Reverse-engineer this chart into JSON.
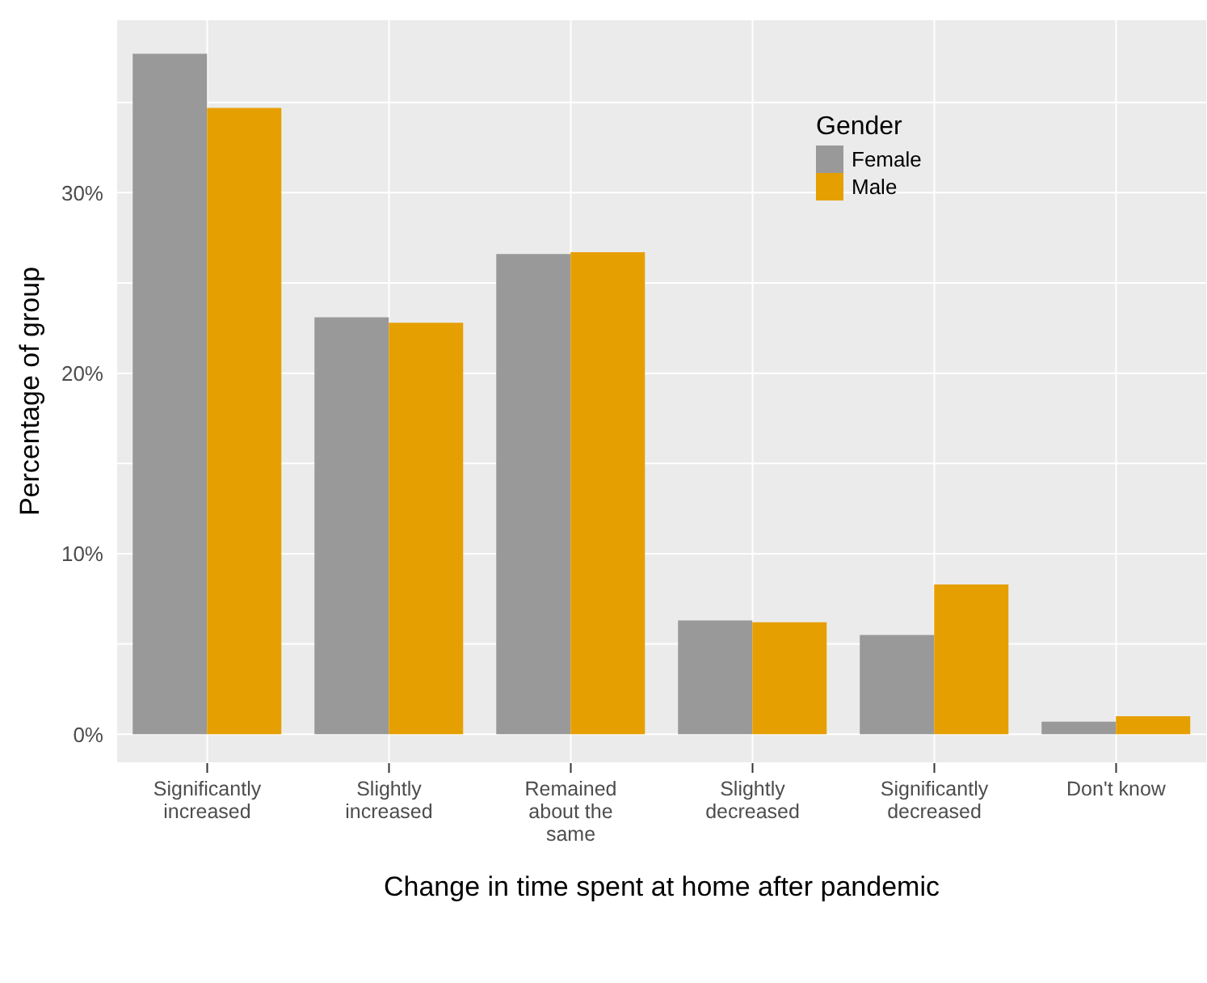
{
  "chart_data": {
    "type": "bar",
    "xlabel": "Change in time spent at home after pandemic",
    "ylabel": "Percentage of group",
    "legend_title": "Gender",
    "categories": [
      "Significantly increased",
      "Slightly increased",
      "Remained about the same",
      "Slightly decreased",
      "Significantly decreased",
      "Don't know"
    ],
    "series": [
      {
        "name": "Female",
        "color": "#999999",
        "values": [
          37.7,
          23.1,
          26.6,
          6.3,
          5.5,
          0.7
        ]
      },
      {
        "name": "Male",
        "color": "#e69f00",
        "values": [
          34.7,
          22.8,
          26.7,
          6.2,
          8.3,
          1.0
        ]
      }
    ],
    "ylim": [
      -1.6,
      39.6
    ],
    "yticks": [
      {
        "value": 0,
        "label": "0%"
      },
      {
        "value": 5,
        "label": null
      },
      {
        "value": 10,
        "label": "10%"
      },
      {
        "value": 15,
        "label": null
      },
      {
        "value": 20,
        "label": "20%"
      },
      {
        "value": 25,
        "label": null
      },
      {
        "value": 30,
        "label": "30%"
      },
      {
        "value": 35,
        "label": null
      }
    ],
    "grid": true,
    "legend": "top right"
  }
}
